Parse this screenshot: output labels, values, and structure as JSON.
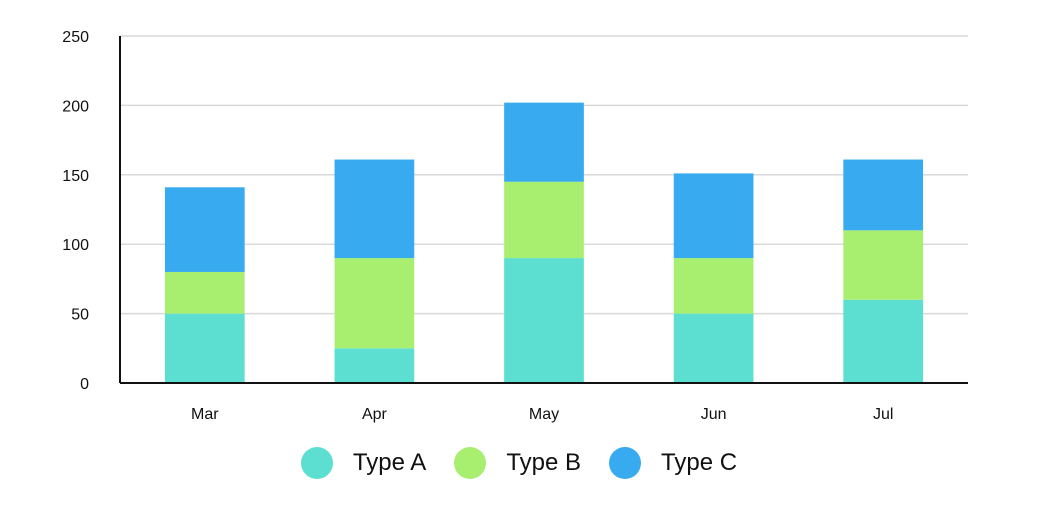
{
  "chart_data": {
    "type": "bar",
    "stacked": true,
    "categories": [
      "Mar",
      "Apr",
      "May",
      "Jun",
      "Jul"
    ],
    "series": [
      {
        "name": "Type A",
        "values": [
          50,
          25,
          90,
          50,
          60
        ],
        "color": "#5cdfd0"
      },
      {
        "name": "Type B",
        "values": [
          30,
          65,
          55,
          40,
          50
        ],
        "color": "#a8ef70"
      },
      {
        "name": "Type C",
        "values": [
          61,
          71,
          57,
          61,
          51
        ],
        "color": "#38aaf0"
      }
    ],
    "ylim": [
      0,
      250
    ],
    "yticks": [
      0,
      50,
      100,
      150,
      200,
      250
    ],
    "grid": true,
    "legend": "bottom"
  }
}
